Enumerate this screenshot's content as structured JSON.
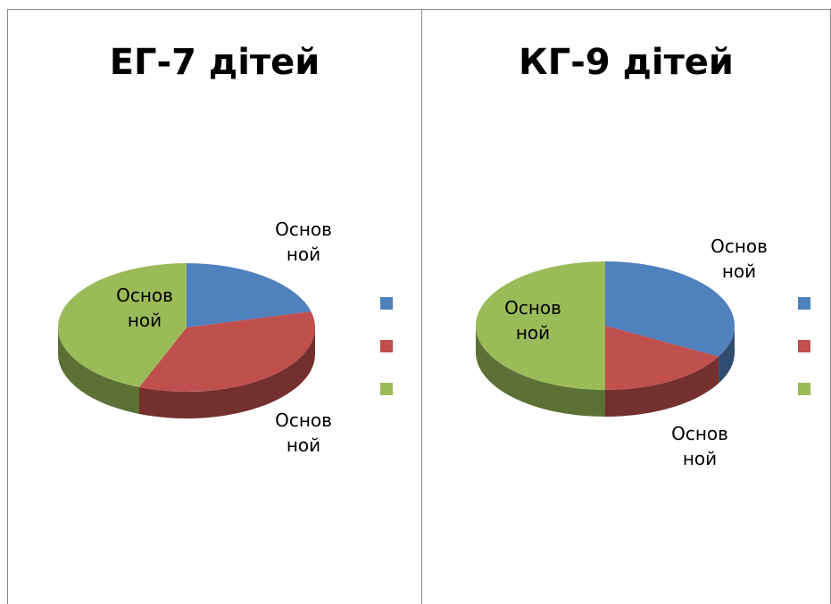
{
  "chart_data": [
    {
      "type": "pie",
      "title": "ЕГ-7 дітей",
      "values": [
        21,
        35,
        44
      ],
      "labels": [
        "Основ ной",
        "Основ ной",
        "Основ ной"
      ],
      "colors": [
        "#4f81bd",
        "#c0504d",
        "#9bbb59"
      ]
    },
    {
      "type": "pie",
      "title": "КГ-9 дітей",
      "values": [
        33,
        17,
        50
      ],
      "labels": [
        "Основ ной",
        "Основ ной",
        "Основ ной"
      ],
      "colors": [
        "#4f81bd",
        "#c0504d",
        "#9bbb59"
      ]
    }
  ]
}
